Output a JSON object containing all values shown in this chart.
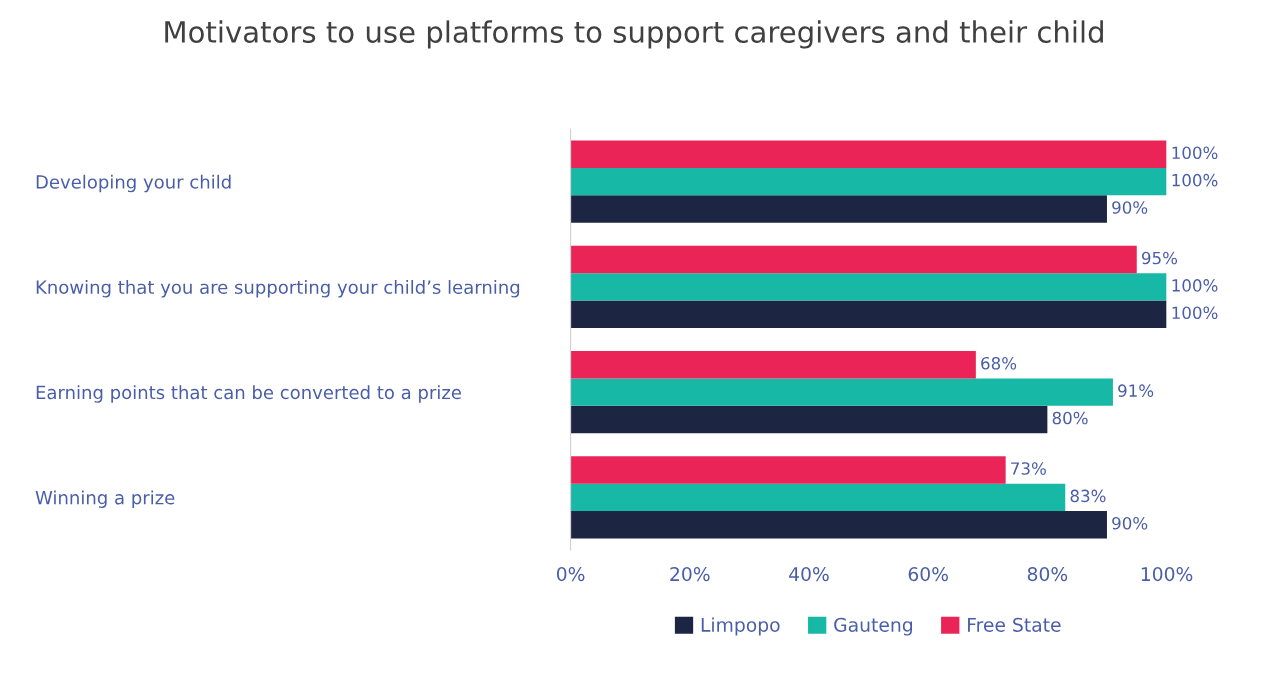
{
  "chart_data": {
    "type": "bar",
    "orientation": "horizontal",
    "title": "Motivators to use platforms to support caregivers and their child",
    "categories": [
      "Developing your child",
      "Knowing that you are supporting your child’s learning",
      "Earning points that can be converted to a prize",
      "Winning a prize"
    ],
    "series": [
      {
        "name": "Limpopo",
        "color": "#1c2541",
        "values": [
          90,
          100,
          80,
          90
        ],
        "value_labels": [
          "90%",
          "100%",
          "80%",
          "90%"
        ]
      },
      {
        "name": "Gauteng",
        "color": "#17b8a6",
        "values": [
          100,
          100,
          91,
          83
        ],
        "value_labels": [
          "100%",
          "100%",
          "91%",
          "83%"
        ]
      },
      {
        "name": "Free State",
        "color": "#ea2457",
        "values": [
          100,
          95,
          68,
          73
        ],
        "value_labels": [
          "100%",
          "95%",
          "68%",
          "73%"
        ]
      }
    ],
    "xlim": [
      0,
      100
    ],
    "xticks": [
      {
        "value": 0,
        "label": "0%"
      },
      {
        "value": 20,
        "label": "20%"
      },
      {
        "value": 40,
        "label": "40%"
      },
      {
        "value": 60,
        "label": "60%"
      },
      {
        "value": 80,
        "label": "80%"
      },
      {
        "value": 100,
        "label": "100%"
      }
    ],
    "grid": false,
    "legend": "bottom"
  }
}
